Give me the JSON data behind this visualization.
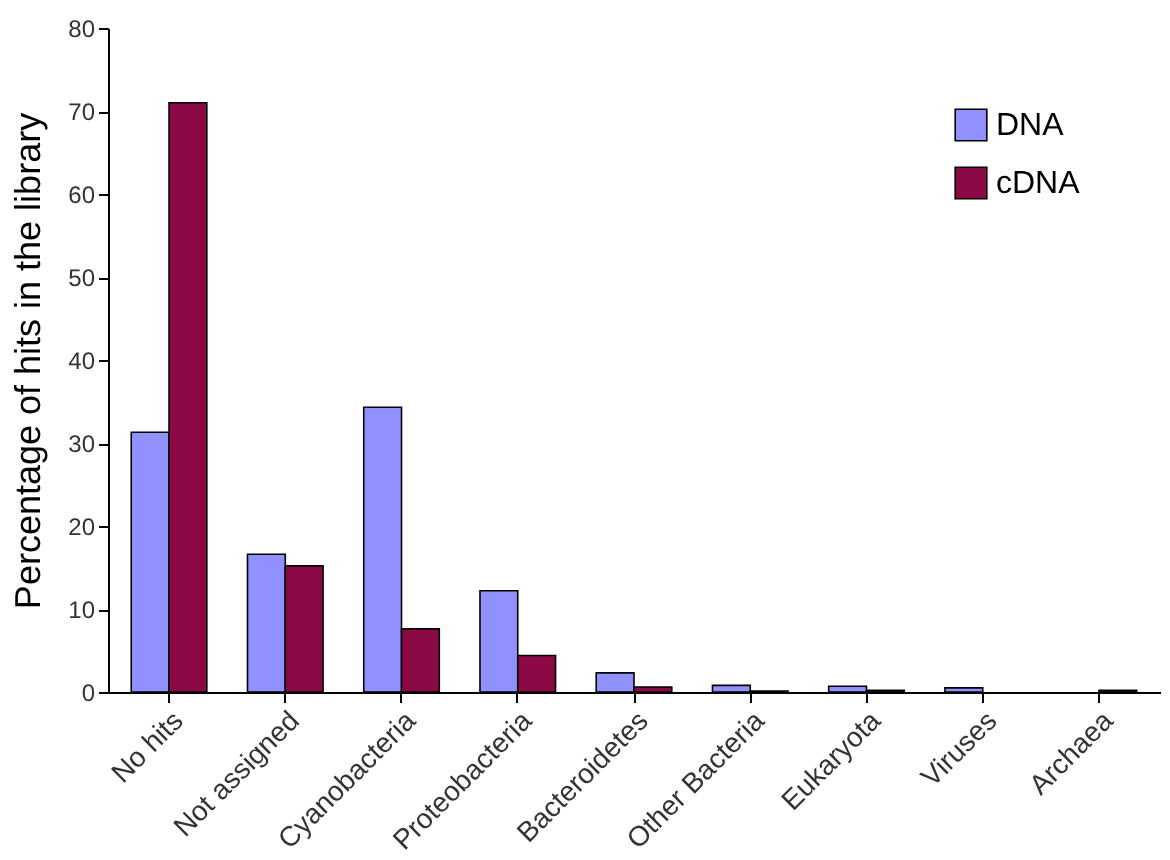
{
  "chart_data": {
    "type": "bar",
    "ylabel": "Percentage of hits in the library",
    "categories": [
      "No hits",
      "Not assigned",
      "Cyanobacteria",
      "Proteobacteria",
      "Bacteroidetes",
      "Other Bacteria",
      "Eukaryota",
      "Viruses",
      "Archaea"
    ],
    "series": [
      {
        "name": "DNA",
        "color": "#9090ff",
        "values": [
          31.3,
          16.6,
          34.3,
          12.2,
          2.3,
          0.8,
          0.7,
          0.5,
          null
        ]
      },
      {
        "name": "cDNA",
        "color": "#8b0a45",
        "values": [
          71,
          15.2,
          7.6,
          4.4,
          0.6,
          0.1,
          0.2,
          null,
          0.2
        ]
      }
    ],
    "ylim": [
      0,
      80
    ],
    "yticks": [
      0,
      10,
      20,
      30,
      40,
      50,
      60,
      70,
      80
    ],
    "grid": false,
    "legend": "top right"
  }
}
